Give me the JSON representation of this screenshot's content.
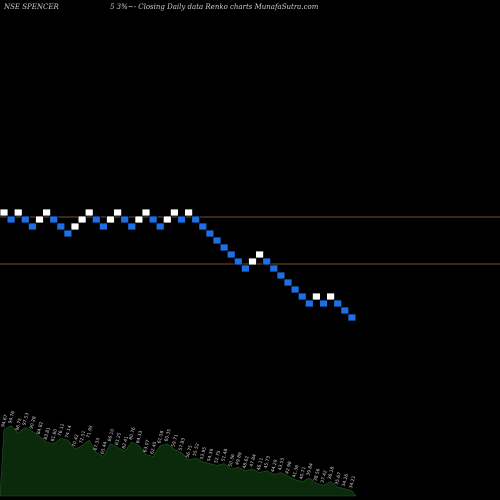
{
  "header": {
    "symbol_text": "NSE SPENCER",
    "info_text": "5 3%~- Closing Daily data  Renko  charts MunafaSutra.com"
  },
  "colors": {
    "background": "#000000",
    "up_brick": "#ffffff",
    "down_brick": "#1e6fe6",
    "brick_border": "#000000",
    "reference_line": "#7a4b2e",
    "volume_fill": "#0b2a0b",
    "volume_label": "#d0d0d0"
  },
  "chart_data": {
    "type": "renko",
    "bricks": [
      {
        "level": 0,
        "dir": "up"
      },
      {
        "level": -1,
        "dir": "down"
      },
      {
        "level": 0,
        "dir": "up"
      },
      {
        "level": -1,
        "dir": "down"
      },
      {
        "level": -2,
        "dir": "down"
      },
      {
        "level": -1,
        "dir": "up"
      },
      {
        "level": 0,
        "dir": "up"
      },
      {
        "level": -1,
        "dir": "down"
      },
      {
        "level": -2,
        "dir": "down"
      },
      {
        "level": -3,
        "dir": "down"
      },
      {
        "level": -2,
        "dir": "up"
      },
      {
        "level": -1,
        "dir": "up"
      },
      {
        "level": 0,
        "dir": "up"
      },
      {
        "level": -1,
        "dir": "down"
      },
      {
        "level": -2,
        "dir": "down"
      },
      {
        "level": -1,
        "dir": "up"
      },
      {
        "level": 0,
        "dir": "up"
      },
      {
        "level": -1,
        "dir": "down"
      },
      {
        "level": -2,
        "dir": "down"
      },
      {
        "level": -1,
        "dir": "up"
      },
      {
        "level": 0,
        "dir": "up"
      },
      {
        "level": -1,
        "dir": "down"
      },
      {
        "level": -2,
        "dir": "down"
      },
      {
        "level": -1,
        "dir": "up"
      },
      {
        "level": 0,
        "dir": "up"
      },
      {
        "level": -1,
        "dir": "down"
      },
      {
        "level": 0,
        "dir": "up"
      },
      {
        "level": -1,
        "dir": "down"
      },
      {
        "level": -2,
        "dir": "down"
      },
      {
        "level": -3,
        "dir": "down"
      },
      {
        "level": -4,
        "dir": "down"
      },
      {
        "level": -5,
        "dir": "down"
      },
      {
        "level": -6,
        "dir": "down"
      },
      {
        "level": -7,
        "dir": "down"
      },
      {
        "level": -8,
        "dir": "down"
      },
      {
        "level": -7,
        "dir": "up"
      },
      {
        "level": -6,
        "dir": "up"
      },
      {
        "level": -7,
        "dir": "down"
      },
      {
        "level": -8,
        "dir": "down"
      },
      {
        "level": -9,
        "dir": "down"
      },
      {
        "level": -10,
        "dir": "down"
      },
      {
        "level": -11,
        "dir": "down"
      },
      {
        "level": -12,
        "dir": "down"
      },
      {
        "level": -13,
        "dir": "down"
      },
      {
        "level": -12,
        "dir": "up"
      },
      {
        "level": -13,
        "dir": "down"
      },
      {
        "level": -12,
        "dir": "up"
      },
      {
        "level": -13,
        "dir": "down"
      },
      {
        "level": -14,
        "dir": "down"
      },
      {
        "level": -15,
        "dir": "down"
      }
    ],
    "reference_lines": [
      0,
      0
    ],
    "volume": {
      "values": [
        74,
        78,
        70,
        76,
        72,
        66,
        60,
        58,
        64,
        62,
        52,
        56,
        62,
        48,
        44,
        58,
        54,
        50,
        60,
        56,
        46,
        44,
        56,
        58,
        52,
        48,
        40,
        42,
        38,
        36,
        34,
        36,
        30,
        32,
        28,
        30,
        26,
        28,
        24,
        26,
        22,
        18,
        16,
        20,
        14,
        12,
        16,
        10,
        8,
        6
      ],
      "labels": [
        "94.67",
        "94.76",
        "96.75",
        "97.53",
        "90.28",
        "84.82",
        "83.81",
        "81.60",
        "76.12",
        "74.14",
        "70.42",
        "72.51",
        "71.95",
        "67.33",
        "65.44",
        "66.10",
        "63.25",
        "62.41",
        "60.76",
        "64.33",
        "63.07",
        "62.45",
        "61.58",
        "60.35",
        "59.71",
        "57.83",
        "56.75",
        "55.52",
        "53.95",
        "54.39",
        "52.75",
        "51.48",
        "50.36",
        "49.89",
        "48.62",
        "47.84",
        "46.11",
        "45.73",
        "44.29",
        "43.55",
        "42.98",
        "41.36",
        "40.71",
        "39.84",
        "38.56",
        "37.42",
        "36.18",
        "35.67",
        "34.26",
        "34.21"
      ]
    }
  }
}
